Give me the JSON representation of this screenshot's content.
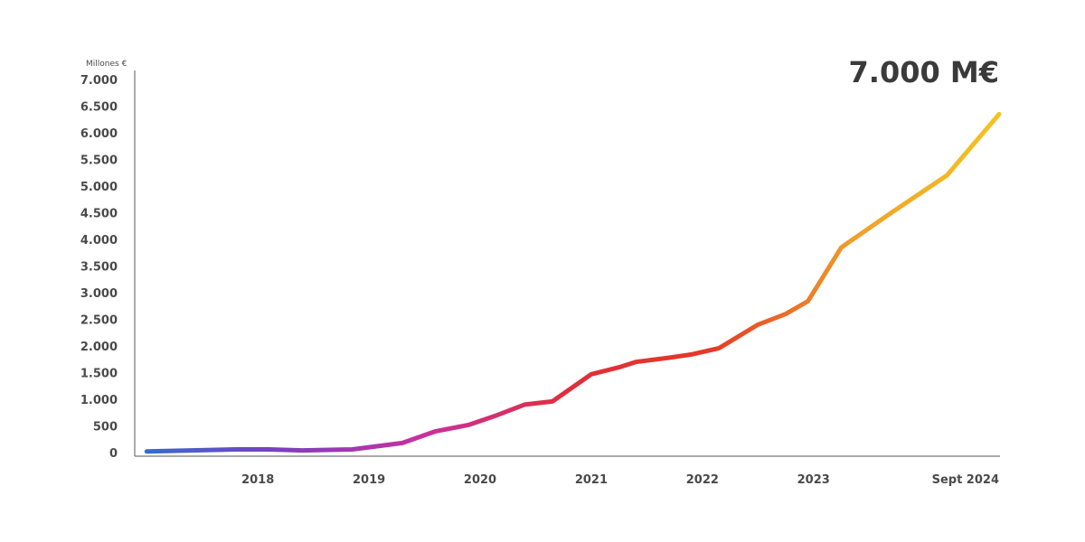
{
  "chart_data": {
    "type": "line",
    "ylabel": "Millones €",
    "headline": "7.000 M€",
    "y_ticks": [
      {
        "value": 0,
        "label": "0"
      },
      {
        "value": 500,
        "label": "500"
      },
      {
        "value": 1000,
        "label": "1.000"
      },
      {
        "value": 1500,
        "label": "1.500"
      },
      {
        "value": 2000,
        "label": "2.000"
      },
      {
        "value": 2500,
        "label": "2.500"
      },
      {
        "value": 3000,
        "label": "3.000"
      },
      {
        "value": 3500,
        "label": "3.500"
      },
      {
        "value": 4000,
        "label": "4.000"
      },
      {
        "value": 4500,
        "label": "4.500"
      },
      {
        "value": 5000,
        "label": "5.000"
      },
      {
        "value": 5500,
        "label": "5.500"
      },
      {
        "value": 6000,
        "label": "6.000"
      },
      {
        "value": 6500,
        "label": "6.500"
      },
      {
        "value": 7000,
        "label": "7.000"
      }
    ],
    "x_ticks": [
      {
        "value": 2018.0,
        "label": "2018"
      },
      {
        "value": 2019.0,
        "label": "2019"
      },
      {
        "value": 2020.0,
        "label": "2020"
      },
      {
        "value": 2021.0,
        "label": "2021"
      },
      {
        "value": 2022.0,
        "label": "2022"
      },
      {
        "value": 2023.0,
        "label": "2023"
      },
      {
        "value": 2024.67,
        "label": "Sept 2024"
      }
    ],
    "xlim": [
      2016.9,
      2024.67
    ],
    "ylim": [
      0,
      7000
    ],
    "grid": false,
    "gradient_colors": [
      "#2f6fd0",
      "#7b3fc0",
      "#c8319e",
      "#e02e3c",
      "#e33a26",
      "#f0a02a",
      "#f5c320"
    ],
    "x": [
      2017.0,
      2017.4,
      2017.8,
      2018.1,
      2018.4,
      2018.85,
      2019.3,
      2019.6,
      2019.9,
      2020.15,
      2020.4,
      2020.65,
      2021.0,
      2021.25,
      2021.4,
      2021.7,
      2021.9,
      2022.15,
      2022.5,
      2022.75,
      2022.95,
      2023.25,
      2023.7,
      2024.2,
      2024.67
    ],
    "series": [
      {
        "values": [
          20,
          40,
          60,
          60,
          40,
          60,
          180,
          400,
          520,
          700,
          900,
          960,
          1470,
          1600,
          1700,
          1780,
          1840,
          1960,
          2400,
          2600,
          2840,
          3850,
          4500,
          5200,
          6350
        ]
      }
    ]
  }
}
